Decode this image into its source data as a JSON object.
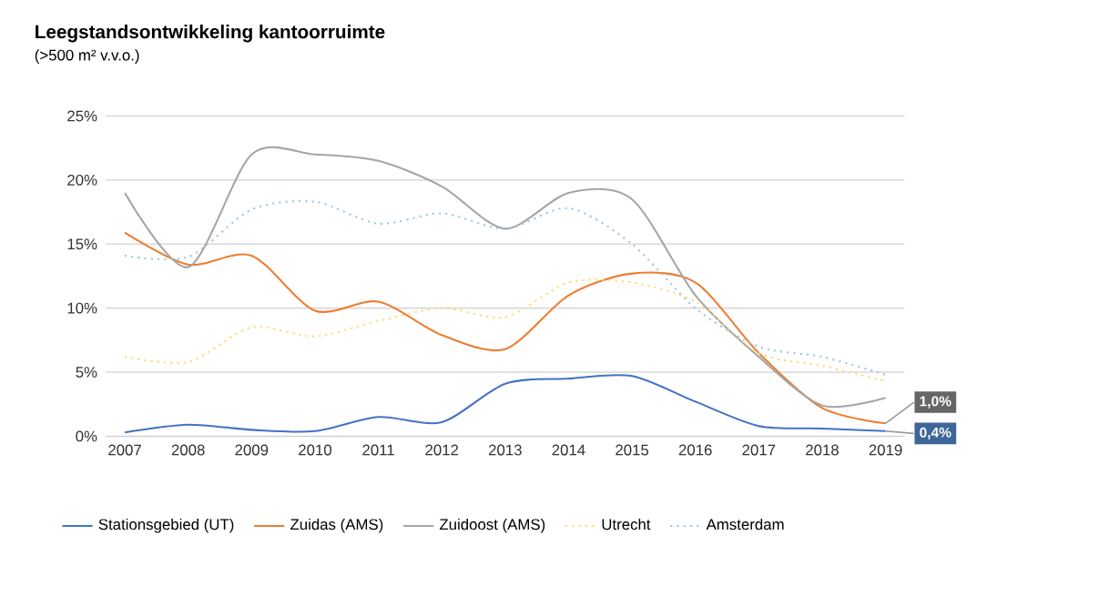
{
  "chart_data": {
    "type": "line",
    "title": "Leegstandsontwikkeling kantoorruimte",
    "subtitle": "(>500 m² v.v.o.)",
    "categories": [
      "2007",
      "2008",
      "2009",
      "2010",
      "2011",
      "2012",
      "2013",
      "2014",
      "2015",
      "2016",
      "2017",
      "2018",
      "2019"
    ],
    "series": [
      {
        "name": "Stationsgebied (UT)",
        "color": "#4472c4",
        "line_style": "solid",
        "values": [
          0.3,
          0.9,
          0.5,
          0.4,
          1.5,
          1.1,
          4.1,
          4.5,
          4.7,
          2.7,
          0.8,
          0.6,
          0.4
        ]
      },
      {
        "name": "Zuidas (AMS)",
        "color": "#ed7d31",
        "line_style": "solid",
        "values": [
          15.9,
          13.4,
          14.1,
          9.8,
          10.5,
          7.9,
          6.8,
          11.0,
          12.7,
          12.0,
          6.5,
          2.2,
          1.0
        ]
      },
      {
        "name": "Zuidoost (AMS)",
        "color": "#a5a5a5",
        "line_style": "solid",
        "values": [
          19.0,
          13.2,
          22.0,
          22.0,
          21.5,
          19.5,
          16.2,
          19.0,
          18.5,
          11.0,
          6.2,
          2.4,
          3.0
        ]
      },
      {
        "name": "Utrecht",
        "color": "#ffd966",
        "line_style": "dotted",
        "values": [
          6.2,
          5.8,
          8.5,
          7.8,
          9.0,
          10.0,
          9.3,
          12.0,
          12.0,
          10.5,
          6.5,
          5.5,
          4.3
        ]
      },
      {
        "name": "Amsterdam",
        "color": "#9dc3e6",
        "line_style": "dotted",
        "values": [
          14.1,
          14.0,
          17.7,
          18.3,
          16.6,
          17.4,
          16.2,
          17.8,
          15.0,
          10.0,
          7.0,
          6.2,
          4.8
        ]
      }
    ],
    "ylim": [
      0,
      25
    ],
    "yticks": [
      {
        "value": 0,
        "label": "0%"
      },
      {
        "value": 5,
        "label": "5%"
      },
      {
        "value": 10,
        "label": "10%"
      },
      {
        "value": 15,
        "label": "15%"
      },
      {
        "value": 20,
        "label": "20%"
      },
      {
        "value": 25,
        "label": "25%"
      }
    ],
    "grid": "y",
    "legend": "bottom",
    "marker": "none",
    "annotations": [
      {
        "text": "1,0%",
        "x": "2019",
        "y": 1.0
      },
      {
        "text": "0,4%",
        "x": "2019",
        "y": 0.4
      }
    ]
  }
}
